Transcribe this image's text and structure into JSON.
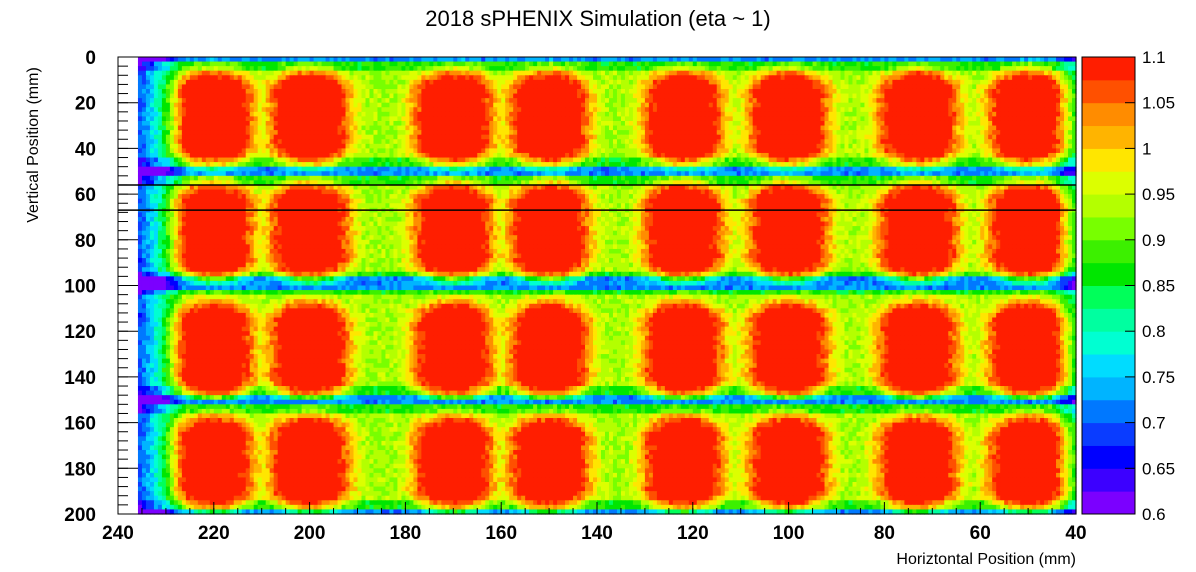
{
  "chart_data": {
    "type": "heatmap",
    "title": "2018 sPHENIX Simulation (eta ~ 1)",
    "xlabel": "Horiztontal Position (mm)",
    "ylabel": "Vertical Position (mm)",
    "xlim": [
      240,
      40
    ],
    "ylim": [
      0,
      200
    ],
    "x_ticks": [
      "240",
      "220",
      "200",
      "180",
      "160",
      "140",
      "120",
      "100",
      "80",
      "60",
      "40"
    ],
    "y_ticks": [
      "0",
      "20",
      "40",
      "60",
      "80",
      "100",
      "120",
      "140",
      "160",
      "180",
      "200"
    ],
    "colorbar": {
      "range": [
        0.6,
        1.1
      ],
      "ticks": [
        "1.1",
        "1.05",
        "1",
        "0.95",
        "0.9",
        "0.85",
        "0.8",
        "0.75",
        "0.7",
        "0.65",
        "0.6"
      ],
      "palette": [
        "#7b00ff",
        "#3c00ff",
        "#0000ff",
        "#0a3cff",
        "#0078ff",
        "#00b4ff",
        "#00dcff",
        "#00ffd2",
        "#00ffa0",
        "#00ff5a",
        "#00e600",
        "#3cf000",
        "#78ff00",
        "#b4ff00",
        "#dcff00",
        "#ffe600",
        "#ffb400",
        "#ff8c00",
        "#ff5000",
        "#ff1e00"
      ]
    },
    "block_centers_x": [
      220,
      200,
      170,
      150,
      122,
      100,
      73,
      50
    ],
    "block_rows_y": [
      [
        3,
        47
      ],
      [
        53,
        96
      ],
      [
        102,
        147
      ],
      [
        153,
        197
      ]
    ],
    "lobe_centers_y": [
      [
        17,
        36
      ],
      [
        66,
        86
      ],
      [
        118,
        138
      ],
      [
        168,
        187
      ]
    ],
    "peak_value": 1.1,
    "baseline_value": 0.93,
    "gap_value": 0.72,
    "marker_lines_y": [
      56,
      67
    ]
  }
}
